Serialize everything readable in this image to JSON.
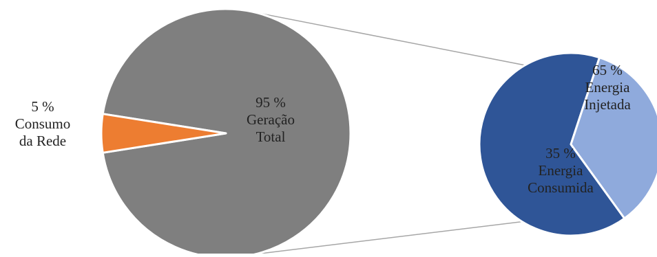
{
  "chart_data": {
    "type": "pie",
    "subtype": "pie-of-pie",
    "primary": {
      "slices": [
        {
          "key": "geracao",
          "value": 95,
          "label_lines": [
            "95 %",
            "Geração",
            "Total"
          ],
          "color": "#7f7f7f"
        },
        {
          "key": "consumo_rede",
          "value": 5,
          "label_lines": [
            "5 %",
            "Consumo",
            "da Rede"
          ],
          "color": "#ed7d31"
        }
      ]
    },
    "secondary": {
      "breakdown_of": "geracao",
      "slices": [
        {
          "key": "injetada",
          "value": 65,
          "label_lines": [
            "65 %",
            "Energia",
            "Injetada"
          ],
          "color": "#2f5597"
        },
        {
          "key": "consumida",
          "value": 35,
          "label_lines": [
            "35 %",
            "Energia",
            "Consumida"
          ],
          "color": "#8faadc"
        }
      ]
    },
    "connector_color": "#a6a6a6",
    "slice_border_color": "#ffffff",
    "legend": "none"
  }
}
